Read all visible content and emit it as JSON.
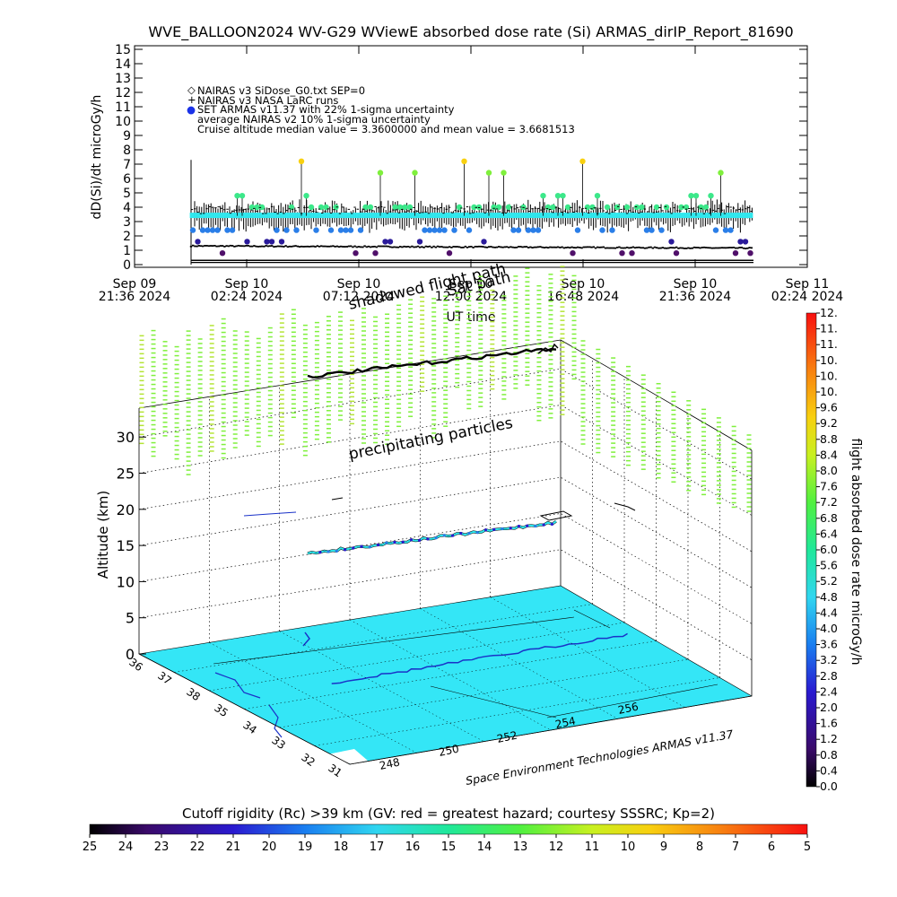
{
  "header": {
    "title": "WVE_BALLOON2024 WV-G29 WViewE absorbed dose rate (Si) ARMAS_dirIP_Report_81690"
  },
  "chart_data": [
    {
      "type": "scatter",
      "ylabel": "dD(Si)/dt microGy/h",
      "xlabel": "UT time",
      "ylim": [
        0,
        15
      ],
      "yticks": [
        "0",
        "1",
        "2",
        "3",
        "4",
        "5",
        "6",
        "7",
        "8",
        "9",
        "10",
        "11",
        "12",
        "13",
        "14",
        "15"
      ],
      "xticks": [
        {
          "day": "Sep 09",
          "time": "21:36 2024"
        },
        {
          "day": "Sep 10",
          "time": "02:24 2024"
        },
        {
          "day": "Sep 10",
          "time": "07:12 2024"
        },
        {
          "day": "Sep 10",
          "time": "12:00 2024"
        },
        {
          "day": "Sep 10",
          "time": "16:48 2024"
        },
        {
          "day": "Sep 10",
          "time": "21:36 2024"
        },
        {
          "day": "Sep 11",
          "time": "02:24 2024"
        }
      ],
      "legend": [
        {
          "symbol": "◇",
          "text": "NAIRAS v3 SiDose_G0.txt SEP=0"
        },
        {
          "symbol": "+",
          "text": "NAIRAS v3 NASA LaRC runs"
        },
        {
          "symbol": "●",
          "text": "SET ARMAS v11.37 with 22% 1-sigma uncertainty"
        },
        {
          "symbol": "",
          "text": "average NAIRAS v2 10% 1-sigma uncertainty"
        },
        {
          "symbol": "",
          "text": "Cruise altitude median value = 3.3600000 and mean value = 3.6681513"
        }
      ],
      "overlay_labels": [
        "shadowed flight path",
        "Sat path"
      ],
      "series": [
        {
          "name": "NAIRAS v3 SiDose_G0.txt SEP=0",
          "level": 1.3
        },
        {
          "name": "NAIRAS v3 NASA LaRC runs",
          "level": 3.4
        },
        {
          "name": "SET ARMAS v11.37 with 22% 1-sigma uncertainty",
          "levels": [
            0.8,
            1.6,
            2.4,
            3.2,
            4.0,
            4.8,
            5.6,
            6.4,
            7.2
          ]
        }
      ],
      "x_start": "2024-09-10 00:42",
      "x_end": "2024-09-10 23:40"
    },
    {
      "type": "scatter",
      "projection": "3d",
      "zlabel": "Altitude (km)",
      "zticks": [
        "0",
        "5",
        "10",
        "15",
        "20",
        "25",
        "30"
      ],
      "lat_ticks": [
        "36",
        "37",
        "38",
        "35",
        "34",
        "33",
        "32",
        "31"
      ],
      "lon_ticks": [
        "248",
        "250",
        "252",
        "254",
        "256"
      ],
      "annotation": "precipitating particles",
      "credit": "Space Environment Technologies ARMAS v11.37",
      "cruise_altitude_km": 18
    }
  ],
  "colorbar_right": {
    "label": "flight absorbed dose rate microGy/h",
    "ticks": [
      "0.0",
      "0.4",
      "0.8",
      "1.2",
      "1.6",
      "2.0",
      "2.4",
      "2.8",
      "3.2",
      "3.6",
      "4.0",
      "4.4",
      "4.8",
      "5.2",
      "5.6",
      "6.0",
      "6.4",
      "6.8",
      "7.2",
      "7.6",
      "8.0",
      "8.4",
      "8.8",
      "9.2",
      "9.6",
      "10.",
      "10.",
      "10.",
      "11.",
      "11.",
      "12."
    ]
  },
  "colorbar_bottom": {
    "label": "Cutoff rigidity (Rc) >39 km (GV: red = greatest hazard; courtesy SSSRC; Kp=2)",
    "ticks": [
      "25",
      "24",
      "23",
      "22",
      "21",
      "20",
      "19",
      "18",
      "17",
      "16",
      "15",
      "14",
      "13",
      "12",
      "11",
      "10",
      "9",
      "8",
      "7",
      "6",
      "5"
    ]
  },
  "colors": {
    "green": "#7ff03c",
    "lightgreen": "#3ce88a",
    "cyan": "#2ee8ee",
    "blue": "#2a7ee8",
    "navy": "#2a1a9a",
    "purple": "#50106a",
    "yellow": "#f8d010",
    "ground": "#34e6f6"
  }
}
